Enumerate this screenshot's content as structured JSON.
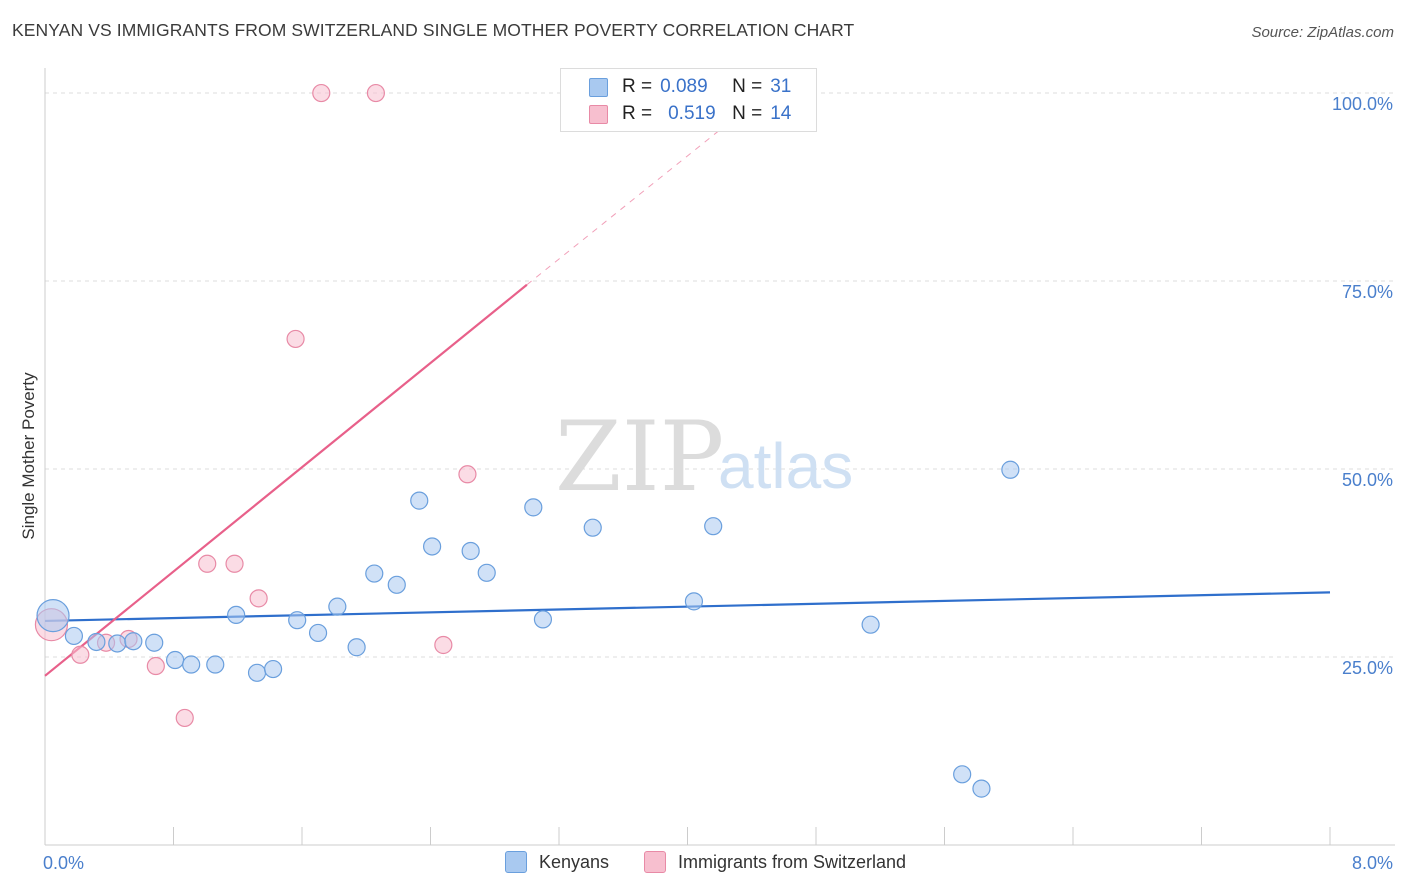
{
  "header": {
    "title": "KENYAN VS IMMIGRANTS FROM SWITZERLAND SINGLE MOTHER POVERTY CORRELATION CHART",
    "source": "Source: ZipAtlas.com"
  },
  "watermark": {
    "zip": "ZIP",
    "atlas": "atlas"
  },
  "legend": {
    "rows": [
      {
        "r_label": "R =",
        "r_value": "0.089",
        "n_label": "N =",
        "n_value": "31",
        "color": "#a9c9f0"
      },
      {
        "r_label": "R =",
        "r_value": "0.519",
        "n_label": "N =",
        "n_value": "14",
        "color": "#f7bfcf"
      }
    ]
  },
  "chart_data": {
    "type": "scatter",
    "title": "KENYAN VS IMMIGRANTS FROM SWITZERLAND SINGLE MOTHER POVERTY CORRELATION CHART",
    "xlabel": "",
    "ylabel": "Single Mother Poverty",
    "xlim": [
      0,
      8
    ],
    "ylim": [
      0,
      102
    ],
    "x_ticks": [
      "0.0%",
      "8.0%"
    ],
    "y_ticks": [
      {
        "value": 25,
        "label": "25.0%"
      },
      {
        "value": 50,
        "label": "50.0%"
      },
      {
        "value": 75,
        "label": "75.0%"
      },
      {
        "value": 100,
        "label": "100.0%"
      }
    ],
    "grid": true,
    "legend_position": "top-center",
    "series": [
      {
        "name": "Kenyans",
        "color": "#a9c9f0",
        "stroke": "#6a9fdd",
        "line_color": "#2f6fcc",
        "trend": {
          "x": [
            0,
            8
          ],
          "y": [
            29.8,
            33.6
          ]
        },
        "points": [
          {
            "x": 0.05,
            "y": 30.5,
            "big": true
          },
          {
            "x": 0.18,
            "y": 27.8
          },
          {
            "x": 0.32,
            "y": 27.0
          },
          {
            "x": 0.45,
            "y": 26.8
          },
          {
            "x": 0.55,
            "y": 27.1
          },
          {
            "x": 0.68,
            "y": 26.9
          },
          {
            "x": 0.81,
            "y": 24.6
          },
          {
            "x": 0.91,
            "y": 24.0
          },
          {
            "x": 1.06,
            "y": 24.0
          },
          {
            "x": 1.19,
            "y": 30.6
          },
          {
            "x": 1.32,
            "y": 22.9
          },
          {
            "x": 1.42,
            "y": 23.4
          },
          {
            "x": 1.57,
            "y": 29.9
          },
          {
            "x": 1.7,
            "y": 28.2
          },
          {
            "x": 1.82,
            "y": 31.7
          },
          {
            "x": 1.94,
            "y": 26.3
          },
          {
            "x": 2.05,
            "y": 36.1
          },
          {
            "x": 2.19,
            "y": 34.6
          },
          {
            "x": 2.33,
            "y": 45.8
          },
          {
            "x": 2.41,
            "y": 39.7
          },
          {
            "x": 2.65,
            "y": 39.1
          },
          {
            "x": 2.75,
            "y": 36.2
          },
          {
            "x": 3.04,
            "y": 44.9
          },
          {
            "x": 3.1,
            "y": 30.0
          },
          {
            "x": 3.41,
            "y": 42.2
          },
          {
            "x": 4.04,
            "y": 32.4
          },
          {
            "x": 4.16,
            "y": 42.4
          },
          {
            "x": 5.14,
            "y": 29.3
          },
          {
            "x": 5.71,
            "y": 9.4
          },
          {
            "x": 5.83,
            "y": 7.5
          },
          {
            "x": 6.01,
            "y": 49.9
          }
        ]
      },
      {
        "name": "Immigrants from Switzerland",
        "color": "#f7bfcf",
        "stroke": "#e88aa6",
        "line_color": "#e8608a",
        "trend": {
          "x": [
            0,
            3.0
          ],
          "y": [
            22.5,
            74.5
          ]
        },
        "trend_dashed": {
          "x": [
            3.0,
            4.4
          ],
          "y": [
            74.5,
            98.5
          ]
        },
        "points": [
          {
            "x": 0.04,
            "y": 29.3,
            "big": true
          },
          {
            "x": 0.22,
            "y": 25.3
          },
          {
            "x": 0.38,
            "y": 26.9
          },
          {
            "x": 0.52,
            "y": 27.4
          },
          {
            "x": 0.69,
            "y": 23.8
          },
          {
            "x": 0.87,
            "y": 16.9
          },
          {
            "x": 1.01,
            "y": 37.4
          },
          {
            "x": 1.18,
            "y": 37.4
          },
          {
            "x": 1.33,
            "y": 32.8
          },
          {
            "x": 1.56,
            "y": 67.3
          },
          {
            "x": 1.72,
            "y": 100.0
          },
          {
            "x": 2.06,
            "y": 100.0
          },
          {
            "x": 2.48,
            "y": 26.6
          },
          {
            "x": 2.63,
            "y": 49.3
          }
        ]
      }
    ]
  }
}
